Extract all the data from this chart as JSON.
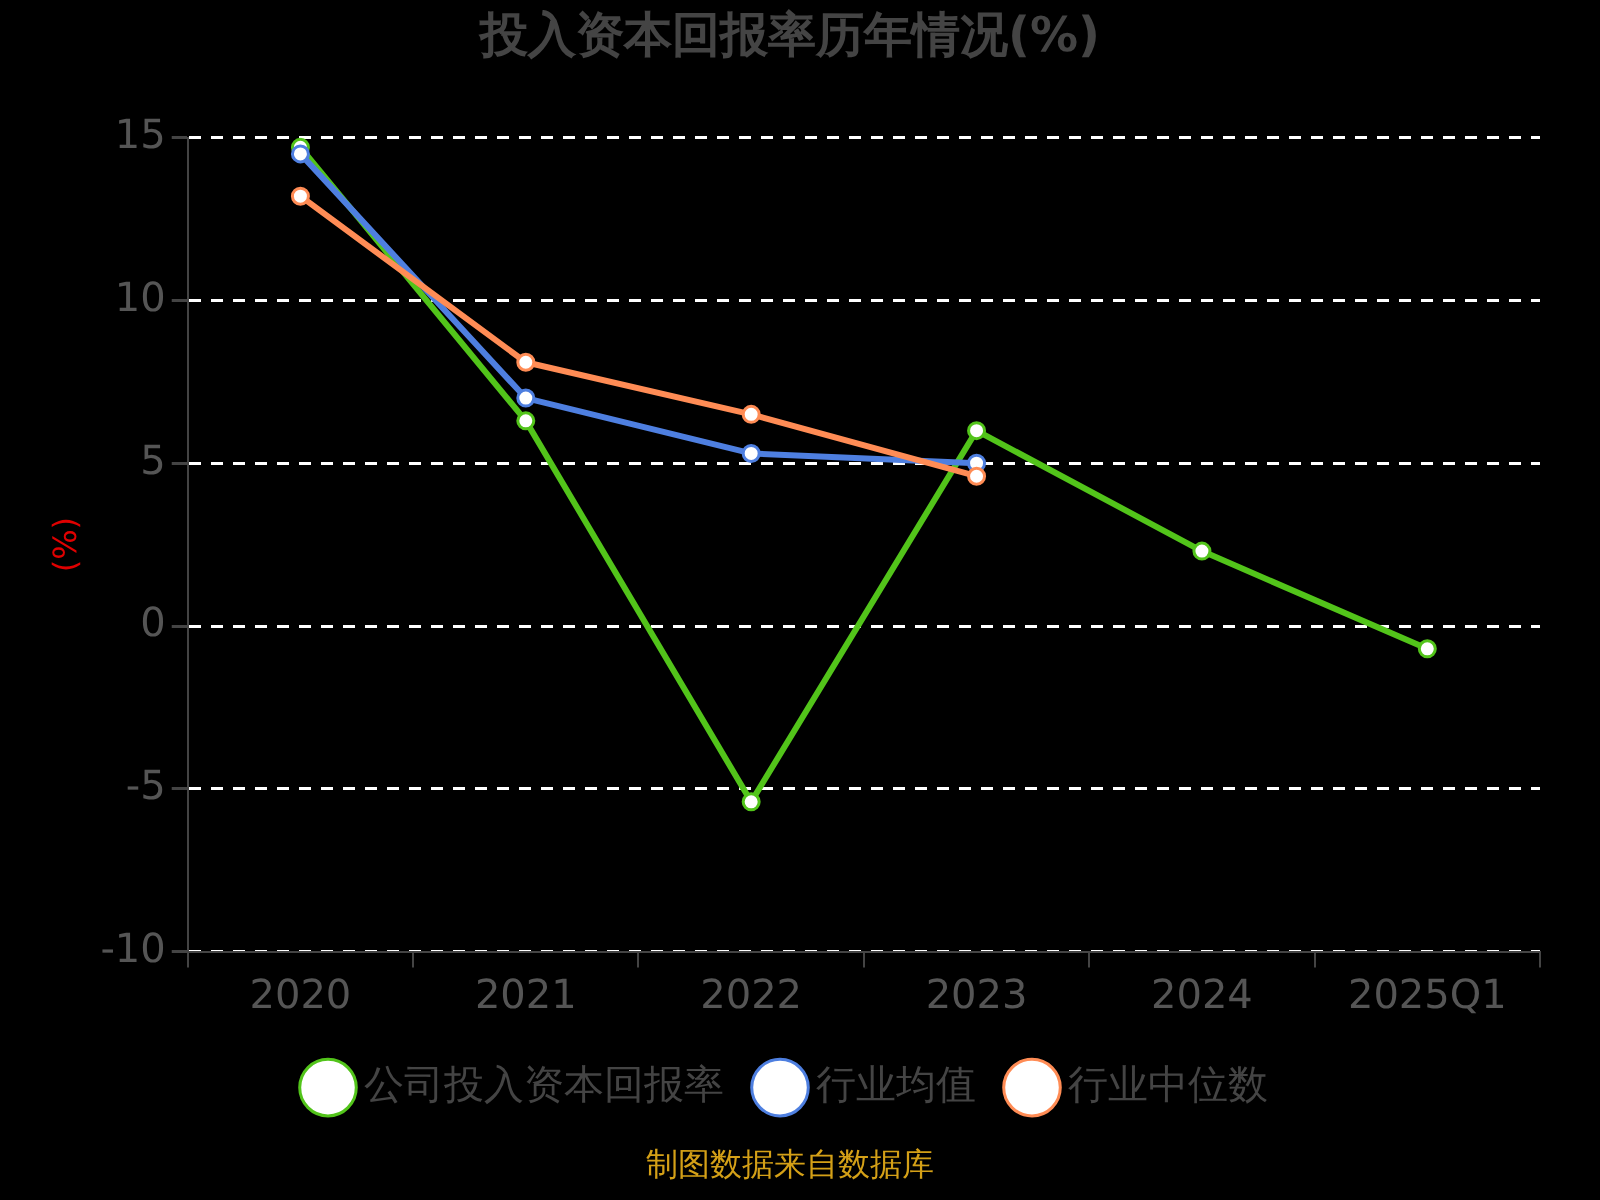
{
  "chart_data": {
    "type": "line",
    "title": "投入资本回报率历年情况(%)",
    "ylabel": "(%)",
    "categories": [
      "2020",
      "2021",
      "2022",
      "2023",
      "2024",
      "2025Q1"
    ],
    "series": [
      {
        "name": "公司投入资本回报率",
        "color": "#52c41a",
        "values": [
          14.7,
          6.3,
          -5.4,
          6.0,
          2.3,
          -0.7
        ]
      },
      {
        "name": "行业均值",
        "color": "#4e7fe0",
        "values": [
          14.5,
          7.0,
          5.3,
          5.0,
          null,
          null
        ]
      },
      {
        "name": "行业中位数",
        "color": "#ff8c55",
        "values": [
          13.2,
          8.1,
          6.5,
          4.6,
          null,
          null
        ]
      }
    ],
    "ylim": [
      -10,
      15
    ],
    "yticks": [
      -10,
      -5,
      0,
      5,
      10,
      15
    ],
    "grid": "y",
    "legend": "bottom",
    "marker": "circle",
    "line_style": "solid",
    "annotations": [
      "制图数据来自数据库"
    ]
  }
}
